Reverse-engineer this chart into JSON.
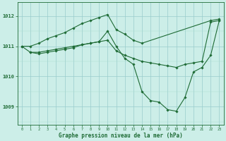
{
  "bg_color": "#cceee8",
  "grid_major_color": "#99cccc",
  "grid_minor_color": "#aaddcc",
  "line_color": "#1e6b35",
  "xlabel": "Graphe pression niveau de la mer (hPa)",
  "yticks": [
    1009,
    1010,
    1011,
    1012
  ],
  "xticks": [
    0,
    1,
    2,
    3,
    4,
    5,
    6,
    7,
    8,
    9,
    10,
    11,
    12,
    13,
    14,
    15,
    16,
    17,
    18,
    19,
    20,
    21,
    22,
    23
  ],
  "xlim": [
    -0.5,
    23.5
  ],
  "ylim": [
    1008.4,
    1012.45
  ],
  "series1_x": [
    0,
    1,
    2,
    3,
    4,
    5,
    6,
    7,
    8,
    9,
    10,
    11,
    12,
    13,
    14,
    22,
    23
  ],
  "series1_y": [
    1011.0,
    1011.0,
    1011.1,
    1011.25,
    1011.35,
    1011.45,
    1011.6,
    1011.75,
    1011.85,
    1011.95,
    1012.05,
    1011.55,
    1011.4,
    1011.2,
    1011.1,
    1011.85,
    1011.9
  ],
  "series2_x": [
    0,
    1,
    2,
    3,
    4,
    5,
    6,
    7,
    8,
    9,
    10,
    11,
    12,
    13,
    14,
    15,
    16,
    17,
    18,
    19,
    20,
    21,
    22,
    23
  ],
  "series2_y": [
    1011.0,
    1010.8,
    1010.8,
    1010.85,
    1010.9,
    1010.95,
    1011.0,
    1011.05,
    1011.1,
    1011.15,
    1011.2,
    1010.85,
    1010.7,
    1010.6,
    1010.5,
    1010.45,
    1010.4,
    1010.35,
    1010.3,
    1010.4,
    1010.45,
    1010.5,
    1011.8,
    1011.85
  ],
  "series3_x": [
    1,
    2,
    3,
    4,
    5,
    6,
    7,
    8,
    9,
    10,
    11,
    12,
    13,
    14,
    15,
    16,
    17,
    18,
    19,
    20,
    21,
    22,
    23
  ],
  "series3_y": [
    1010.8,
    1010.75,
    1010.8,
    1010.85,
    1010.9,
    1010.95,
    1011.05,
    1011.1,
    1011.15,
    1011.5,
    1011.0,
    1010.6,
    1010.4,
    1009.5,
    1009.2,
    1009.15,
    1008.9,
    1008.85,
    1009.3,
    1010.15,
    1010.3,
    1010.7,
    1011.85
  ]
}
